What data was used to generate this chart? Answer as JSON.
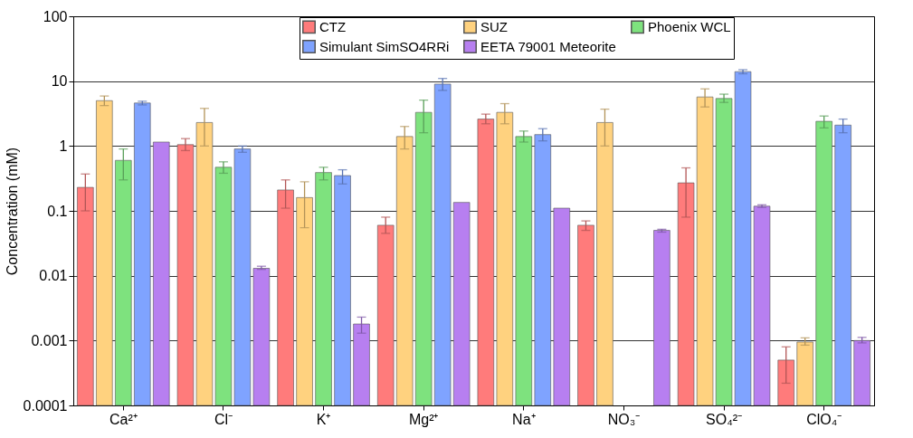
{
  "chart_data": {
    "type": "bar",
    "ylabel": "Concentration (mM)",
    "categories": [
      "Ca²⁺",
      "Cl⁻",
      "K⁺",
      "Mg²⁺",
      "Na⁺",
      "NO₃⁻",
      "SO₄²⁻",
      "ClO₄⁻"
    ],
    "series": [
      {
        "name": "CTZ",
        "color": "#ff7b7b",
        "values": [
          0.23,
          1.05,
          0.21,
          0.06,
          2.6,
          0.06,
          0.27,
          0.0005
        ],
        "errors": [
          [
            0.1,
            0.37
          ],
          [
            0.85,
            1.3
          ],
          [
            0.11,
            0.3
          ],
          [
            0.045,
            0.08
          ],
          [
            2.2,
            3.1
          ],
          [
            0.05,
            0.07
          ],
          [
            0.08,
            0.46
          ],
          [
            0.00022,
            0.0008
          ]
        ]
      },
      {
        "name": "SUZ",
        "color": "#ffd27f",
        "values": [
          5.0,
          2.3,
          0.16,
          1.4,
          3.3,
          2.3,
          5.7,
          0.00095
        ],
        "errors": [
          [
            4.2,
            5.9
          ],
          [
            1.0,
            3.8
          ],
          [
            0.055,
            0.28
          ],
          [
            0.9,
            2.0
          ],
          [
            2.2,
            4.5
          ],
          [
            1.0,
            3.7
          ],
          [
            4.0,
            7.6
          ],
          [
            0.00085,
            0.0011
          ]
        ]
      },
      {
        "name": "Phoenix WCL",
        "color": "#7ee27e",
        "values": [
          0.6,
          0.47,
          0.39,
          3.3,
          1.4,
          null,
          5.4,
          2.4
        ],
        "errors": [
          [
            0.3,
            0.9
          ],
          [
            0.38,
            0.57
          ],
          [
            0.3,
            0.47
          ],
          [
            1.6,
            5.1
          ],
          [
            1.15,
            1.7
          ],
          null,
          [
            4.7,
            6.3
          ],
          [
            1.9,
            2.9
          ]
        ]
      },
      {
        "name": "Simulant SimSO4RRi",
        "color": "#7fa3ff",
        "values": [
          4.6,
          0.9,
          0.35,
          9.0,
          1.5,
          null,
          14,
          2.1
        ],
        "errors": [
          [
            4.3,
            4.9
          ],
          [
            0.8,
            1.0
          ],
          [
            0.26,
            0.43
          ],
          [
            7.2,
            11
          ],
          [
            1.2,
            1.85
          ],
          null,
          [
            13,
            15
          ],
          [
            1.6,
            2.6
          ]
        ]
      },
      {
        "name": "EETA 79001 Meteorite",
        "color": "#b77ff0",
        "values": [
          1.15,
          0.013,
          0.0018,
          0.135,
          0.11,
          0.05,
          0.118,
          0.001
        ],
        "errors": [
          null,
          [
            0.0125,
            0.014
          ],
          [
            0.0013,
            0.0023
          ],
          null,
          null,
          [
            0.047,
            0.052
          ],
          [
            0.113,
            0.124
          ],
          [
            0.00092,
            0.00112
          ]
        ]
      }
    ],
    "log": true,
    "ylim": [
      0.0001,
      100
    ],
    "yticks": [
      0.0001,
      0.001,
      0.01,
      0.1,
      1,
      10,
      100
    ],
    "grid": "y",
    "legend": "top"
  }
}
